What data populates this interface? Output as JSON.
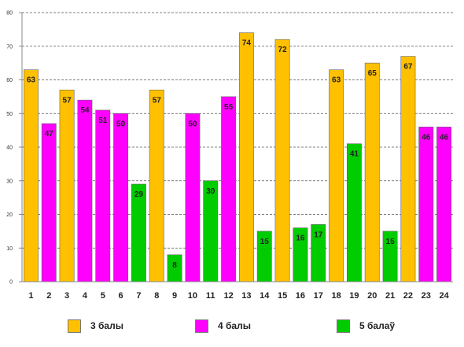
{
  "chart_data": {
    "type": "bar",
    "title": "",
    "xlabel": "",
    "ylabel": "",
    "categories": [
      "1",
      "2",
      "3",
      "4",
      "5",
      "6",
      "7",
      "8",
      "9",
      "10",
      "11",
      "12",
      "13",
      "14",
      "15",
      "16",
      "17",
      "18",
      "19",
      "20",
      "21",
      "22",
      "23",
      "24"
    ],
    "values": [
      63,
      47,
      57,
      54,
      51,
      50,
      29,
      57,
      8,
      50,
      30,
      55,
      74,
      15,
      72,
      16,
      17,
      63,
      41,
      65,
      15,
      67,
      46,
      46
    ],
    "bar_series": [
      0,
      1,
      0,
      1,
      1,
      1,
      2,
      0,
      2,
      1,
      2,
      1,
      0,
      2,
      0,
      2,
      2,
      0,
      2,
      0,
      2,
      0,
      1,
      1
    ],
    "series": [
      {
        "name": "3 балы",
        "color": "#FFC000"
      },
      {
        "name": "4 балы",
        "color": "#FF00FF"
      },
      {
        "name": "5 балаў",
        "color": "#00CC00"
      }
    ],
    "ylim": [
      0,
      80
    ],
    "yticks": [
      "0",
      "10",
      "20",
      "30",
      "40",
      "50",
      "60",
      "70",
      "80"
    ],
    "ytick_values": [
      0,
      10,
      20,
      30,
      40,
      50,
      60,
      70,
      80
    ],
    "grid": true,
    "legend_position": "bottom"
  }
}
